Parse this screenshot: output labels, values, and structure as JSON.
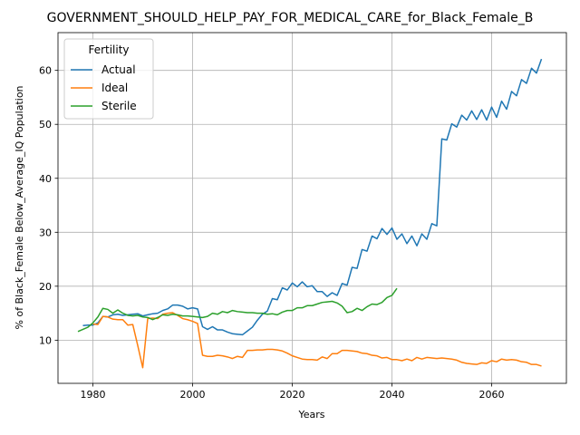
{
  "chart_data": {
    "type": "line",
    "title": "GOVERNMENT_SHOULD_HELP_PAY_FOR_MEDICAL_CARE_for_Black_Female_B",
    "xlabel": "Years",
    "ylabel": "% of Black_Female Below_Average_IQ Population",
    "xlim": [
      1973,
      2075
    ],
    "ylim": [
      2,
      67
    ],
    "xticks": [
      1980,
      2000,
      2020,
      2040,
      2060
    ],
    "yticks": [
      10,
      20,
      30,
      40,
      50,
      60
    ],
    "grid": true,
    "legend": {
      "title": "Fertility",
      "placement": "top-left"
    },
    "series": [
      {
        "name": "Actual",
        "color": "#1f77b4",
        "x": [
          1978,
          1979,
          1980,
          1981,
          1982,
          1983,
          1984,
          1985,
          1986,
          1987,
          1988,
          1989,
          1990,
          1991,
          1992,
          1993,
          1994,
          1995,
          1996,
          1997,
          1998,
          1999,
          2000,
          2001,
          2002,
          2003,
          2004,
          2005,
          2006,
          2007,
          2008,
          2009,
          2010,
          2011,
          2012,
          2013,
          2014,
          2015,
          2016,
          2017,
          2018,
          2019,
          2020,
          2021,
          2022,
          2023,
          2024,
          2025,
          2026,
          2027,
          2028,
          2029,
          2030,
          2031,
          2032,
          2033,
          2034,
          2035,
          2036,
          2037,
          2038,
          2039,
          2040,
          2041,
          2042,
          2043,
          2044,
          2045,
          2046,
          2047,
          2048,
          2049,
          2050,
          2051,
          2052,
          2053,
          2054,
          2055,
          2056,
          2057,
          2058,
          2059,
          2060,
          2061,
          2062,
          2063,
          2064,
          2065,
          2066,
          2067,
          2068,
          2069,
          2070
        ],
        "y": [
          12.7,
          12.8,
          12.8,
          13.2,
          14.4,
          14.3,
          14.7,
          14.8,
          14.6,
          14.7,
          14.8,
          14.9,
          14.5,
          14.7,
          14.9,
          15.0,
          15.5,
          15.8,
          16.5,
          16.5,
          16.3,
          15.8,
          16.0,
          15.8,
          12.5,
          12.0,
          12.5,
          11.9,
          11.9,
          11.5,
          11.2,
          11.1,
          11.0,
          11.7,
          12.4,
          13.7,
          14.8,
          15.4,
          17.7,
          17.5,
          19.7,
          19.3,
          20.6,
          19.9,
          20.8,
          19.9,
          20.1,
          19.0,
          19.0,
          18.1,
          18.8,
          18.3,
          20.5,
          20.2,
          23.5,
          23.3,
          26.8,
          26.5,
          29.3,
          28.8,
          30.7,
          29.6,
          30.8,
          28.7,
          29.7,
          27.9,
          29.3,
          27.5,
          29.7,
          28.7,
          31.6,
          31.2,
          47.3,
          47.1,
          50.1,
          49.5,
          51.7,
          50.8,
          52.5,
          50.9,
          52.7,
          50.8,
          53.2,
          51.3,
          54.3,
          52.8,
          56.1,
          55.3,
          58.3,
          57.6,
          60.4,
          59.5,
          62.1
        ]
      },
      {
        "name": "Ideal",
        "color": "#ff7f0e",
        "x": [
          1980,
          1981,
          1982,
          1983,
          1984,
          1985,
          1986,
          1987,
          1988,
          1989,
          1990,
          1991,
          1992,
          1993,
          1994,
          1995,
          1996,
          1997,
          1998,
          1999,
          2000,
          2001,
          2002,
          2003,
          2004,
          2005,
          2006,
          2007,
          2008,
          2009,
          2010,
          2011,
          2012,
          2013,
          2014,
          2015,
          2016,
          2017,
          2018,
          2019,
          2020,
          2021,
          2022,
          2023,
          2024,
          2025,
          2026,
          2027,
          2028,
          2029,
          2030,
          2031,
          2032,
          2033,
          2034,
          2035,
          2036,
          2037,
          2038,
          2039,
          2040,
          2041,
          2042,
          2043,
          2044,
          2045,
          2046,
          2047,
          2048,
          2049,
          2050,
          2051,
          2052,
          2053,
          2054,
          2055,
          2056,
          2057,
          2058,
          2059,
          2060,
          2061,
          2062,
          2063,
          2064,
          2065,
          2066,
          2067,
          2068,
          2069,
          2070
        ],
        "y": [
          13.0,
          12.9,
          14.4,
          14.3,
          13.9,
          13.8,
          13.8,
          12.8,
          12.9,
          9.0,
          4.9,
          14.0,
          14.1,
          14.0,
          14.8,
          15.0,
          15.1,
          14.6,
          14.0,
          13.8,
          13.5,
          13.1,
          7.2,
          7.0,
          7.0,
          7.2,
          7.1,
          6.9,
          6.6,
          7.0,
          6.8,
          8.1,
          8.1,
          8.2,
          8.2,
          8.3,
          8.3,
          8.2,
          8.0,
          7.6,
          7.1,
          6.8,
          6.5,
          6.4,
          6.4,
          6.3,
          6.9,
          6.6,
          7.5,
          7.5,
          8.1,
          8.1,
          8.0,
          7.9,
          7.6,
          7.5,
          7.2,
          7.1,
          6.7,
          6.8,
          6.4,
          6.4,
          6.2,
          6.5,
          6.2,
          6.8,
          6.5,
          6.8,
          6.7,
          6.6,
          6.7,
          6.6,
          6.5,
          6.3,
          5.9,
          5.7,
          5.6,
          5.5,
          5.8,
          5.7,
          6.2,
          6.0,
          6.5,
          6.3,
          6.4,
          6.3,
          6.0,
          5.9,
          5.5,
          5.5,
          5.2
        ]
      },
      {
        "name": "Sterile",
        "color": "#2ca02c",
        "x": [
          1977,
          1978,
          1979,
          1980,
          1981,
          1982,
          1983,
          1984,
          1985,
          1986,
          1987,
          1988,
          1989,
          1990,
          1991,
          1992,
          1993,
          1994,
          1995,
          1996,
          1997,
          1998,
          1999,
          2000,
          2001,
          2002,
          2003,
          2004,
          2005,
          2006,
          2007,
          2008,
          2009,
          2010,
          2011,
          2012,
          2013,
          2014,
          2015,
          2016,
          2017,
          2018,
          2019,
          2020,
          2021,
          2022,
          2023,
          2024,
          2025,
          2026,
          2027,
          2028,
          2029,
          2030,
          2031,
          2032,
          2033,
          2034,
          2035,
          2036,
          2037,
          2038,
          2039,
          2040,
          2041
        ],
        "y": [
          11.6,
          12.0,
          12.4,
          13.2,
          14.3,
          15.9,
          15.7,
          15.0,
          15.6,
          15.0,
          14.6,
          14.5,
          14.6,
          14.3,
          14.2,
          13.8,
          14.2,
          14.7,
          14.6,
          14.8,
          14.7,
          14.5,
          14.5,
          14.4,
          14.3,
          14.2,
          14.4,
          15.0,
          14.8,
          15.3,
          15.1,
          15.5,
          15.3,
          15.2,
          15.1,
          15.1,
          15.0,
          15.0,
          14.8,
          14.9,
          14.7,
          15.2,
          15.5,
          15.5,
          16.0,
          16.0,
          16.4,
          16.4,
          16.7,
          17.0,
          17.1,
          17.2,
          16.9,
          16.3,
          15.1,
          15.3,
          15.9,
          15.5,
          16.2,
          16.7,
          16.6,
          17.0,
          17.9,
          18.3,
          19.6
        ]
      }
    ]
  }
}
